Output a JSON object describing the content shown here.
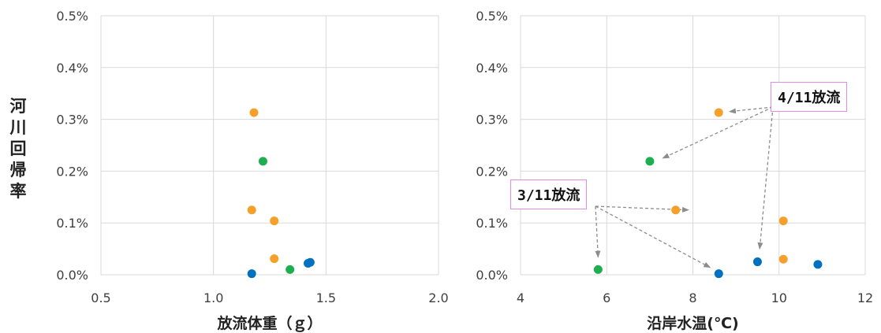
{
  "colors": {
    "blue": "#0070c0",
    "orange": "#f5a02a",
    "green": "#1cae4f",
    "grid": "#d9d9d9",
    "callout_border": "#e38ae3",
    "arrow": "#8c8c8c"
  },
  "ylabel": "河\n川\n回\n帰\n率",
  "chart_data": [
    {
      "type": "scatter",
      "xlabel": "放流体重（ｇ）",
      "xlim": [
        0.5,
        2.0
      ],
      "ylim": [
        0.0,
        0.5
      ],
      "xticks": [
        0.5,
        1.0,
        1.5,
        2.0
      ],
      "xtick_labels": [
        "0.5",
        "1.0",
        "1.5",
        "2.0"
      ],
      "yticks": [
        0.0,
        0.1,
        0.2,
        0.3,
        0.4,
        0.5
      ],
      "ytick_labels": [
        "0.0%",
        "0.1%",
        "0.2%",
        "0.3%",
        "0.4%",
        "0.5%"
      ],
      "grid": true,
      "points": [
        {
          "x": 1.17,
          "y": 0.002,
          "color": "blue"
        },
        {
          "x": 1.42,
          "y": 0.022,
          "color": "blue"
        },
        {
          "x": 1.43,
          "y": 0.024,
          "color": "blue"
        },
        {
          "x": 1.18,
          "y": 0.313,
          "color": "orange"
        },
        {
          "x": 1.17,
          "y": 0.125,
          "color": "orange"
        },
        {
          "x": 1.27,
          "y": 0.104,
          "color": "orange"
        },
        {
          "x": 1.27,
          "y": 0.031,
          "color": "orange"
        },
        {
          "x": 1.22,
          "y": 0.219,
          "color": "green"
        },
        {
          "x": 1.34,
          "y": 0.01,
          "color": "green"
        }
      ]
    },
    {
      "type": "scatter",
      "xlabel": "沿岸水温(℃)",
      "xlim": [
        4,
        12
      ],
      "ylim": [
        0.0,
        0.5
      ],
      "xticks": [
        4,
        6,
        8,
        10,
        12
      ],
      "xtick_labels": [
        "4",
        "6",
        "8",
        "10",
        "12"
      ],
      "yticks": [
        0.0,
        0.1,
        0.2,
        0.3,
        0.4,
        0.5
      ],
      "ytick_labels": [
        "0.0%",
        "0.1%",
        "0.2%",
        "0.3%",
        "0.4%",
        "0.5%"
      ],
      "grid": true,
      "points": [
        {
          "x": 8.6,
          "y": 0.002,
          "color": "blue"
        },
        {
          "x": 9.5,
          "y": 0.025,
          "color": "blue"
        },
        {
          "x": 10.9,
          "y": 0.02,
          "color": "blue"
        },
        {
          "x": 8.6,
          "y": 0.313,
          "color": "orange"
        },
        {
          "x": 7.6,
          "y": 0.125,
          "color": "orange"
        },
        {
          "x": 10.1,
          "y": 0.104,
          "color": "orange"
        },
        {
          "x": 10.1,
          "y": 0.03,
          "color": "orange"
        },
        {
          "x": 7.0,
          "y": 0.219,
          "color": "green"
        },
        {
          "x": 5.8,
          "y": 0.01,
          "color": "green"
        }
      ],
      "annotations": [
        {
          "text": "4/11放流",
          "targets": [
            [
              8.85,
              0.315
            ],
            [
              7.3,
              0.225
            ],
            [
              9.55,
              0.05
            ]
          ]
        },
        {
          "text": "3/11放流",
          "targets": [
            [
              7.9,
              0.125
            ],
            [
              5.8,
              0.034
            ],
            [
              8.4,
              0.014
            ]
          ]
        }
      ]
    }
  ]
}
